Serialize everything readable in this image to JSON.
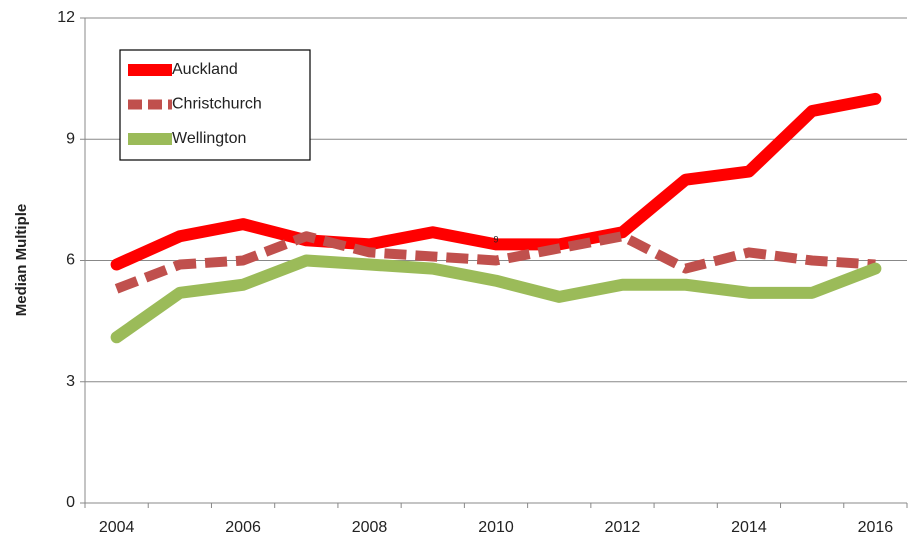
{
  "chart_data": {
    "type": "line",
    "y_label": "Median Multiple",
    "annotation": "9",
    "categories": [
      "2004",
      null,
      "2006",
      null,
      "2008",
      null,
      "2010",
      null,
      "2012",
      null,
      "2014",
      null,
      "2016"
    ],
    "series": [
      {
        "name": "Auckland",
        "color": "#ff0000",
        "dash": false,
        "values": [
          5.9,
          6.6,
          6.9,
          6.5,
          6.4,
          6.7,
          6.4,
          6.4,
          6.7,
          8.0,
          8.2,
          9.7,
          10.0
        ]
      },
      {
        "name": "Christchurch",
        "color": "#c0504d",
        "dash": true,
        "values": [
          5.3,
          5.9,
          6.0,
          6.6,
          6.2,
          6.1,
          6.0,
          6.3,
          6.6,
          5.8,
          6.2,
          6.0,
          5.9
        ]
      },
      {
        "name": "Wellington",
        "color": "#9bbb59",
        "dash": false,
        "values": [
          4.1,
          5.2,
          5.4,
          6.0,
          5.9,
          5.8,
          5.5,
          5.1,
          5.4,
          5.4,
          5.2,
          5.2,
          5.8
        ]
      }
    ],
    "ylim": [
      0,
      12
    ],
    "yticks": [
      0,
      3,
      6,
      9,
      12
    ],
    "grid": true,
    "legend": "top-left"
  }
}
